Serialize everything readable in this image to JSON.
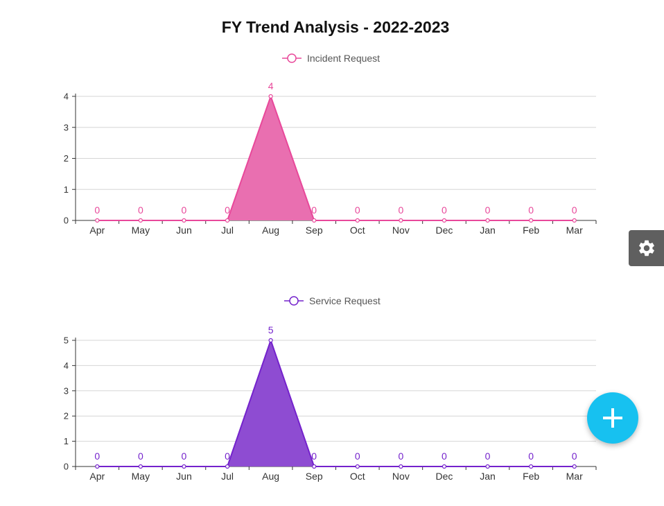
{
  "title": "FY Trend Analysis - 2022-2023",
  "chart_data": [
    {
      "type": "area",
      "title": "FY Trend Analysis - 2022-2023",
      "categories": [
        "Apr",
        "May",
        "Jun",
        "Jul",
        "Aug",
        "Sep",
        "Oct",
        "Nov",
        "Dec",
        "Jan",
        "Feb",
        "Mar"
      ],
      "series": [
        {
          "name": "Incident Request",
          "values": [
            0,
            0,
            0,
            0,
            4,
            0,
            0,
            0,
            0,
            0,
            0,
            0
          ],
          "color": "#e8489a",
          "fill": "#e96fb0"
        }
      ],
      "yticks": [
        "0",
        "1",
        "2",
        "3",
        "4"
      ],
      "ylim": [
        0,
        4
      ],
      "grid": true,
      "legend": "top-center",
      "data_labels": true
    },
    {
      "type": "area",
      "categories": [
        "Apr",
        "May",
        "Jun",
        "Jul",
        "Aug",
        "Sep",
        "Oct",
        "Nov",
        "Dec",
        "Jan",
        "Feb",
        "Mar"
      ],
      "series": [
        {
          "name": "Service Request",
          "values": [
            0,
            0,
            0,
            0,
            5,
            0,
            0,
            0,
            0,
            0,
            0,
            0
          ],
          "color": "#7422cc",
          "fill": "#8e4cd2"
        }
      ],
      "yticks": [
        "0",
        "1",
        "2",
        "3",
        "4",
        "5"
      ],
      "ylim": [
        0,
        5
      ],
      "grid": true,
      "legend": "top-center",
      "data_labels": true
    }
  ],
  "controls": {
    "settings_icon": "gear-icon",
    "add_icon": "plus-icon",
    "add_color": "#17c1f0",
    "settings_color": "#5f5f5f"
  }
}
